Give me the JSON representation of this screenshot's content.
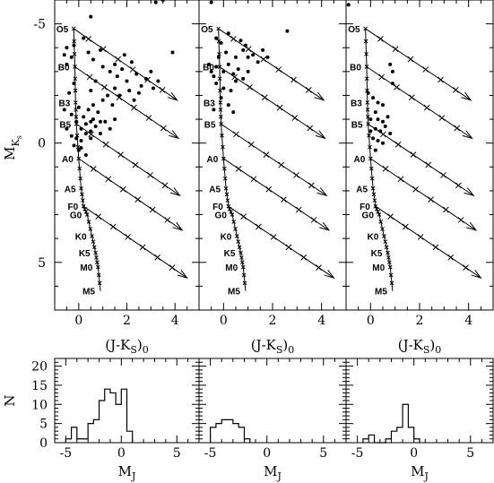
{
  "chart_data": {
    "type": "scatter",
    "description_free": true,
    "axis_labels": {
      "cmd_x": "(J-K",
      "cmd_x_sub": "S",
      "cmd_x_close": ")",
      "cmd_x_sub2": "0",
      "cmd_y": "M",
      "cmd_y_sub": "K",
      "cmd_y_subsub": "s",
      "hist_x": "M",
      "hist_x_sub": "J",
      "hist_y": "N"
    },
    "cmd_xlim": [
      -1,
      5
    ],
    "cmd_ylim": [
      7,
      -6
    ],
    "cmd_xticks": [
      0,
      2,
      4
    ],
    "cmd_yticks": [
      -5,
      0,
      5
    ],
    "hist_xlim": [
      -6,
      7
    ],
    "hist_ylim": [
      0,
      22
    ],
    "hist_xticks": [
      -5,
      0,
      5
    ],
    "hist_yticks": [
      0,
      5,
      10,
      15,
      20
    ],
    "main_sequence": [
      {
        "sp": "O5",
        "x": -0.21,
        "y": -4.8
      },
      {
        "sp": "B0",
        "x": -0.16,
        "y": -3.2
      },
      {
        "sp": "B3",
        "x": -0.13,
        "y": -1.7
      },
      {
        "sp": "B5",
        "x": -0.1,
        "y": -0.8
      },
      {
        "sp": "A0",
        "x": 0.0,
        "y": 0.65
      },
      {
        "sp": "A5",
        "x": 0.1,
        "y": 1.9
      },
      {
        "sp": "F0",
        "x": 0.2,
        "y": 2.65
      },
      {
        "sp": "G0",
        "x": 0.35,
        "y": 3.0
      },
      {
        "sp": "K0",
        "x": 0.55,
        "y": 3.9
      },
      {
        "sp": "K5",
        "x": 0.7,
        "y": 4.6
      },
      {
        "sp": "M0",
        "x": 0.8,
        "y": 5.2
      },
      {
        "sp": "M5",
        "x": 0.9,
        "y": 6.2
      }
    ],
    "reddening_start_types": [
      "O5",
      "B0",
      "B5",
      "A0",
      "F0"
    ],
    "reddening_vector": {
      "dx": 4.3,
      "dy": 3.0,
      "marks": 6
    },
    "panels": [
      {
        "stars": [
          [
            0.5,
            -5.3
          ],
          [
            3.2,
            -5.9
          ],
          [
            3.5,
            -6.0
          ],
          [
            -0.5,
            -4.0
          ],
          [
            -0.6,
            -3.7
          ],
          [
            -0.5,
            -3.3
          ],
          [
            -0.3,
            -3.6
          ],
          [
            -0.2,
            -4.1
          ],
          [
            0.2,
            -4.4
          ],
          [
            0.4,
            -3.8
          ],
          [
            0.6,
            -3.5
          ],
          [
            0.9,
            -3.9
          ],
          [
            1.0,
            -3.2
          ],
          [
            1.3,
            -3.0
          ],
          [
            1.5,
            -3.3
          ],
          [
            1.6,
            -2.8
          ],
          [
            1.8,
            -3.1
          ],
          [
            2.0,
            -2.6
          ],
          [
            2.2,
            -3.4
          ],
          [
            2.4,
            -2.9
          ],
          [
            1.9,
            -3.7
          ],
          [
            1.5,
            -2.3
          ],
          [
            1.2,
            -2.0
          ],
          [
            1.7,
            -2.0
          ],
          [
            2.1,
            -2.2
          ],
          [
            2.5,
            -2.1
          ],
          [
            2.8,
            -2.7
          ],
          [
            2.6,
            -2.4
          ],
          [
            2.3,
            -1.8
          ],
          [
            3.0,
            -3.0
          ],
          [
            3.3,
            -2.6
          ],
          [
            3.1,
            -2.3
          ],
          [
            3.9,
            -3.8
          ],
          [
            1.0,
            -1.8
          ],
          [
            1.4,
            -1.6
          ],
          [
            0.7,
            -2.6
          ],
          [
            0.5,
            -2.2
          ],
          [
            -0.2,
            -2.5
          ],
          [
            -0.4,
            -2.1
          ],
          [
            -0.6,
            -1.4
          ],
          [
            -0.3,
            -1.2
          ],
          [
            0.0,
            -1.5
          ],
          [
            0.2,
            -1.1
          ],
          [
            0.4,
            -1.4
          ],
          [
            0.6,
            -1.0
          ],
          [
            0.8,
            -1.3
          ],
          [
            -0.1,
            -0.9
          ],
          [
            0.1,
            -0.6
          ],
          [
            0.3,
            -0.8
          ],
          [
            0.5,
            -0.5
          ],
          [
            0.7,
            -0.7
          ],
          [
            0.9,
            -0.4
          ],
          [
            1.1,
            -0.9
          ],
          [
            1.3,
            -0.6
          ],
          [
            1.5,
            -1.0
          ],
          [
            -0.5,
            -0.6
          ],
          [
            -0.3,
            -0.3
          ],
          [
            -0.1,
            -0.2
          ],
          [
            0.1,
            -0.1
          ],
          [
            0.3,
            -0.4
          ],
          [
            0.5,
            -0.2
          ],
          [
            -0.2,
            0.1
          ],
          [
            0.0,
            0.3
          ],
          [
            0.1,
            0.2
          ],
          [
            0.3,
            0.5
          ],
          [
            0.5,
            -0.9
          ],
          [
            0.9,
            -0.9
          ],
          [
            0.6,
            -1.6
          ]
        ],
        "hist": [
          {
            "x0": -5.0,
            "x1": -4.5,
            "n": 1
          },
          {
            "x0": -4.5,
            "x1": -4.0,
            "n": 4
          },
          {
            "x0": -4.0,
            "x1": -3.5,
            "n": 1
          },
          {
            "x0": -3.5,
            "x1": -3.0,
            "n": 1
          },
          {
            "x0": -3.0,
            "x1": -2.5,
            "n": 5
          },
          {
            "x0": -2.5,
            "x1": -2.0,
            "n": 6
          },
          {
            "x0": -2.0,
            "x1": -1.5,
            "n": 11
          },
          {
            "x0": -1.5,
            "x1": -1.0,
            "n": 14
          },
          {
            "x0": -1.0,
            "x1": -0.5,
            "n": 13
          },
          {
            "x0": -0.5,
            "x1": 0.0,
            "n": 10
          },
          {
            "x0": 0.0,
            "x1": 0.5,
            "n": 14
          },
          {
            "x0": 0.5,
            "x1": 1.0,
            "n": 3
          }
        ]
      },
      {
        "stars": [
          [
            -0.5,
            -5.9
          ],
          [
            -0.3,
            -4.4
          ],
          [
            -0.1,
            -4.2
          ],
          [
            0.2,
            -4.6
          ],
          [
            0.5,
            -3.6
          ],
          [
            0.7,
            -4.3
          ],
          [
            0.8,
            -3.9
          ],
          [
            1.0,
            -3.6
          ],
          [
            1.2,
            -3.7
          ],
          [
            1.4,
            -3.4
          ],
          [
            1.6,
            -3.9
          ],
          [
            1.8,
            -3.6
          ],
          [
            2.6,
            -4.7
          ],
          [
            -0.6,
            -3.3
          ],
          [
            -0.5,
            -3.0
          ],
          [
            -0.3,
            -3.2
          ],
          [
            -0.2,
            -3.6
          ],
          [
            -0.4,
            -2.8
          ],
          [
            0.0,
            -3.0
          ],
          [
            0.2,
            -3.3
          ],
          [
            0.4,
            -2.9
          ],
          [
            0.6,
            -3.1
          ],
          [
            0.8,
            -2.7
          ],
          [
            1.0,
            -3.0
          ],
          [
            -0.3,
            -2.5
          ],
          [
            0.0,
            -2.3
          ],
          [
            0.3,
            -2.2
          ],
          [
            0.5,
            -2.6
          ],
          [
            -0.1,
            -1.9
          ],
          [
            0.2,
            -1.6
          ],
          [
            -0.4,
            -1.4
          ],
          [
            0.4,
            -1.3
          ],
          [
            0.1,
            -3.8
          ],
          [
            0.9,
            -4.1
          ]
        ],
        "hist": [
          {
            "x0": -5.0,
            "x1": -4.5,
            "n": 4
          },
          {
            "x0": -4.5,
            "x1": -4.0,
            "n": 5
          },
          {
            "x0": -4.0,
            "x1": -3.5,
            "n": 6
          },
          {
            "x0": -3.5,
            "x1": -3.0,
            "n": 6
          },
          {
            "x0": -3.0,
            "x1": -2.5,
            "n": 5
          },
          {
            "x0": -2.5,
            "x1": -2.0,
            "n": 4
          },
          {
            "x0": -2.0,
            "x1": -1.5,
            "n": 1
          }
        ]
      },
      {
        "stars": [
          [
            -0.9,
            -5.8
          ],
          [
            0.8,
            -3.3
          ],
          [
            0.9,
            -2.5
          ],
          [
            0.9,
            -3.0
          ],
          [
            -0.1,
            -2.1
          ],
          [
            0.1,
            -1.9
          ],
          [
            0.3,
            -1.7
          ],
          [
            0.5,
            -1.6
          ],
          [
            0.2,
            -1.3
          ],
          [
            0.0,
            -1.0
          ],
          [
            0.3,
            -1.0
          ],
          [
            0.5,
            -0.9
          ],
          [
            0.7,
            -1.1
          ],
          [
            0.2,
            -0.6
          ],
          [
            0.4,
            -0.5
          ],
          [
            0.6,
            -0.7
          ],
          [
            0.8,
            -0.4
          ],
          [
            0.1,
            -0.2
          ],
          [
            0.3,
            -0.1
          ],
          [
            0.5,
            0.0
          ],
          [
            0.2,
            0.3
          ],
          [
            0.0,
            -0.5
          ]
        ],
        "hist": [
          {
            "x0": -4.5,
            "x1": -4.0,
            "n": 1
          },
          {
            "x0": -4.0,
            "x1": -3.5,
            "n": 2
          },
          {
            "x0": -3.5,
            "x1": -2.5,
            "n": 0
          },
          {
            "x0": -2.5,
            "x1": -2.0,
            "n": 1
          },
          {
            "x0": -2.0,
            "x1": -1.5,
            "n": 3
          },
          {
            "x0": -1.5,
            "x1": -1.0,
            "n": 4
          },
          {
            "x0": -1.0,
            "x1": -0.5,
            "n": 10
          },
          {
            "x0": -0.5,
            "x1": 0.0,
            "n": 4
          },
          {
            "x0": 0.0,
            "x1": 0.5,
            "n": 1
          }
        ]
      }
    ]
  }
}
